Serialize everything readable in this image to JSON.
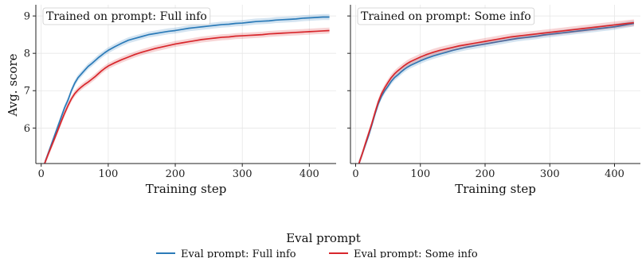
{
  "chart_data": {
    "type": "line",
    "ylabel": "Avg. score",
    "legend": {
      "title": "Eval prompt",
      "placement": "bottom-center",
      "entries": [
        {
          "label": "Eval prompt: Full info",
          "color": "#2a7ab8"
        },
        {
          "label": "Eval prompt: Some info",
          "color": "#d8262b"
        }
      ]
    },
    "grid": true,
    "panels": [
      {
        "title": "Trained on prompt: Full info",
        "xlabel": "Training step",
        "xlim": [
          -8,
          440
        ],
        "ylim": [
          5.05,
          9.3
        ],
        "xticks": [
          0,
          100,
          200,
          300,
          400
        ],
        "yticks": [
          6,
          7,
          8,
          9
        ],
        "series": [
          {
            "name": "Eval prompt: Full info",
            "color": "#2a7ab8",
            "band": 0.08,
            "x": [
              5,
              10,
              15,
              20,
              25,
              30,
              35,
              40,
              45,
              50,
              55,
              60,
              65,
              70,
              75,
              80,
              85,
              90,
              95,
              100,
              110,
              120,
              130,
              140,
              150,
              160,
              170,
              180,
              190,
              200,
              210,
              220,
              230,
              240,
              250,
              260,
              270,
              280,
              290,
              300,
              310,
              320,
              330,
              340,
              350,
              360,
              370,
              380,
              390,
              400,
              410,
              420,
              430
            ],
            "y": [
              5.05,
              5.3,
              5.55,
              5.8,
              6.05,
              6.3,
              6.55,
              6.75,
              7.0,
              7.2,
              7.35,
              7.45,
              7.55,
              7.65,
              7.72,
              7.8,
              7.88,
              7.95,
              8.02,
              8.08,
              8.18,
              8.27,
              8.35,
              8.4,
              8.45,
              8.5,
              8.53,
              8.56,
              8.59,
              8.61,
              8.64,
              8.67,
              8.69,
              8.71,
              8.73,
              8.75,
              8.77,
              8.78,
              8.8,
              8.81,
              8.83,
              8.85,
              8.86,
              8.87,
              8.89,
              8.9,
              8.91,
              8.92,
              8.94,
              8.95,
              8.96,
              8.97,
              8.97
            ]
          },
          {
            "name": "Eval prompt: Some info",
            "color": "#d8262b",
            "band": 0.08,
            "x": [
              5,
              10,
              15,
              20,
              25,
              30,
              35,
              40,
              45,
              50,
              55,
              60,
              65,
              70,
              75,
              80,
              85,
              90,
              95,
              100,
              110,
              120,
              130,
              140,
              150,
              160,
              170,
              180,
              190,
              200,
              210,
              220,
              230,
              240,
              250,
              260,
              270,
              280,
              290,
              300,
              310,
              320,
              330,
              340,
              350,
              360,
              370,
              380,
              390,
              400,
              410,
              420,
              430
            ],
            "y": [
              5.05,
              5.28,
              5.5,
              5.72,
              5.95,
              6.18,
              6.4,
              6.6,
              6.78,
              6.92,
              7.02,
              7.1,
              7.17,
              7.23,
              7.3,
              7.37,
              7.45,
              7.53,
              7.6,
              7.66,
              7.75,
              7.83,
              7.9,
              7.97,
              8.03,
              8.08,
              8.13,
              8.17,
              8.21,
              8.25,
              8.28,
              8.31,
              8.34,
              8.37,
              8.39,
              8.41,
              8.43,
              8.44,
              8.46,
              8.47,
              8.48,
              8.49,
              8.5,
              8.52,
              8.53,
              8.54,
              8.55,
              8.56,
              8.57,
              8.58,
              8.59,
              8.6,
              8.61
            ]
          }
        ]
      },
      {
        "title": "Trained on prompt: Some info",
        "xlabel": "Training step",
        "xlim": [
          -8,
          440
        ],
        "ylim": [
          5.05,
          9.3
        ],
        "xticks": [
          0,
          100,
          200,
          300,
          400
        ],
        "yticks": [
          6,
          7,
          8,
          9
        ],
        "series": [
          {
            "name": "Eval prompt: Full info",
            "color": "#2a7ab8",
            "band": 0.08,
            "x": [
              5,
              10,
              15,
              20,
              25,
              30,
              35,
              40,
              45,
              50,
              55,
              60,
              65,
              70,
              75,
              80,
              85,
              90,
              95,
              100,
              110,
              120,
              130,
              140,
              150,
              160,
              170,
              180,
              190,
              200,
              210,
              220,
              230,
              240,
              250,
              260,
              270,
              280,
              290,
              300,
              310,
              320,
              330,
              340,
              350,
              360,
              370,
              380,
              390,
              400,
              410,
              420,
              430
            ],
            "y": [
              5.05,
              5.3,
              5.55,
              5.8,
              6.08,
              6.38,
              6.65,
              6.85,
              7.0,
              7.12,
              7.25,
              7.35,
              7.42,
              7.5,
              7.57,
              7.63,
              7.68,
              7.72,
              7.76,
              7.8,
              7.87,
              7.93,
              7.98,
              8.03,
              8.08,
              8.12,
              8.16,
              8.19,
              8.22,
              8.25,
              8.28,
              8.31,
              8.34,
              8.37,
              8.4,
              8.42,
              8.44,
              8.46,
              8.49,
              8.51,
              8.53,
              8.55,
              8.57,
              8.59,
              8.61,
              8.63,
              8.65,
              8.67,
              8.69,
              8.71,
              8.74,
              8.77,
              8.8
            ]
          },
          {
            "name": "Eval prompt: Some info",
            "color": "#d8262b",
            "band": 0.09,
            "x": [
              5,
              10,
              15,
              20,
              25,
              30,
              35,
              40,
              45,
              50,
              55,
              60,
              65,
              70,
              75,
              80,
              85,
              90,
              95,
              100,
              110,
              120,
              130,
              140,
              150,
              160,
              170,
              180,
              190,
              200,
              210,
              220,
              230,
              240,
              250,
              260,
              270,
              280,
              290,
              300,
              310,
              320,
              330,
              340,
              350,
              360,
              370,
              380,
              390,
              400,
              410,
              420,
              430
            ],
            "y": [
              5.05,
              5.3,
              5.58,
              5.85,
              6.12,
              6.42,
              6.7,
              6.92,
              7.08,
              7.22,
              7.35,
              7.45,
              7.53,
              7.6,
              7.67,
              7.73,
              7.78,
              7.82,
              7.86,
              7.9,
              7.97,
              8.03,
              8.08,
              8.12,
              8.16,
              8.2,
              8.23,
              8.26,
              8.29,
              8.32,
              8.35,
              8.38,
              8.41,
              8.44,
              8.46,
              8.48,
              8.5,
              8.52,
              8.54,
              8.56,
              8.58,
              8.6,
              8.62,
              8.64,
              8.66,
              8.68,
              8.7,
              8.72,
              8.74,
              8.76,
              8.78,
              8.8,
              8.82
            ]
          }
        ]
      }
    ]
  }
}
